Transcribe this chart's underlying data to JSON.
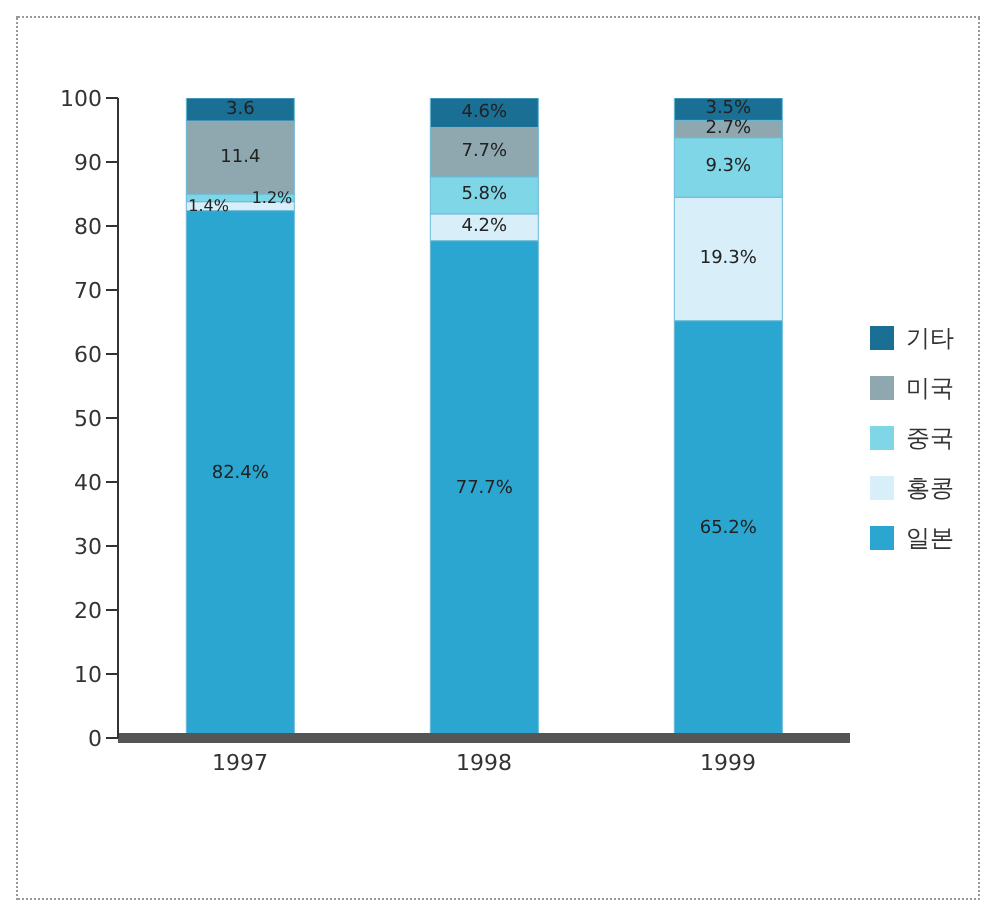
{
  "chart_data": {
    "type": "bar",
    "stacked": true,
    "categories": [
      "1997",
      "1998",
      "1999"
    ],
    "series": [
      {
        "name": "일본",
        "color": "#2aa6d0",
        "values": [
          82.4,
          77.7,
          65.2
        ],
        "value_labels": [
          "82.4%",
          "77.7%",
          "65.2%"
        ]
      },
      {
        "name": "홍콩",
        "color": "#d8eef8",
        "values": [
          1.4,
          4.2,
          19.3
        ],
        "value_labels": [
          "1.4%",
          "4.2%",
          "19.3%"
        ]
      },
      {
        "name": "중국",
        "color": "#7fd6e6",
        "values": [
          1.2,
          5.8,
          9.3
        ],
        "value_labels": [
          "1.2%",
          "5.8%",
          "9.3%"
        ]
      },
      {
        "name": "미국",
        "color": "#8fa8b0",
        "values": [
          11.4,
          7.7,
          2.7
        ],
        "value_labels": [
          "11.4",
          "7.7%",
          "2.7%"
        ]
      },
      {
        "name": "기타",
        "color": "#1a6f94",
        "values": [
          3.6,
          4.6,
          3.5
        ],
        "value_labels": [
          "3.6",
          "4.6%",
          "3.5%"
        ]
      }
    ],
    "ylim": [
      0,
      100
    ],
    "yticks": [
      0,
      10,
      20,
      30,
      40,
      50,
      60,
      70,
      80,
      90,
      100
    ],
    "grid": false,
    "legend": "right"
  }
}
